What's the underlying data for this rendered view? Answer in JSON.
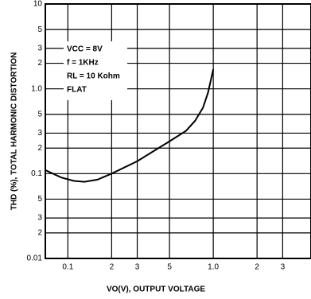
{
  "chart_data": {
    "type": "line",
    "x_label": "VO(V), OUTPUT VOLTAGE",
    "y_label": "THD (%), TOTAL HARMONIC DISTORTION",
    "annotations": [
      "VCC = 8V",
      "f = 1KHz",
      "RL = 10 Kohm",
      "FLAT"
    ],
    "x_log": true,
    "y_log": true,
    "grid": true,
    "xlim": [
      0.07,
      4.7
    ],
    "ylim": [
      0.01,
      10
    ],
    "xticks": [
      0.1,
      {
        "value": 0.2,
        "label": "2"
      },
      {
        "value": 0.3,
        "label": "3"
      },
      {
        "value": 0.5,
        "label": "5"
      },
      {
        "value": 1,
        "label": "1.0"
      },
      2,
      3
    ],
    "yticks": [
      0.01,
      {
        "value": 0.02,
        "label": "2"
      },
      {
        "value": 0.03,
        "label": "3"
      },
      {
        "value": 0.05,
        "label": "5"
      },
      0.1,
      {
        "value": 0.2,
        "label": "2"
      },
      {
        "value": 0.3,
        "label": "3"
      },
      {
        "value": 0.5,
        "label": "5"
      },
      {
        "value": 1,
        "label": "1.0"
      },
      2,
      3,
      5,
      10
    ],
    "series": [
      {
        "color": "#000000",
        "x": [
          0.07,
          0.09,
          0.11,
          0.13,
          0.16,
          0.2,
          0.3,
          0.4,
          0.5,
          0.65,
          0.75,
          0.85,
          0.92,
          1.0
        ],
        "values": [
          0.11,
          0.09,
          0.082,
          0.08,
          0.085,
          0.1,
          0.14,
          0.19,
          0.24,
          0.32,
          0.42,
          0.6,
          0.9,
          1.7
        ]
      }
    ]
  }
}
